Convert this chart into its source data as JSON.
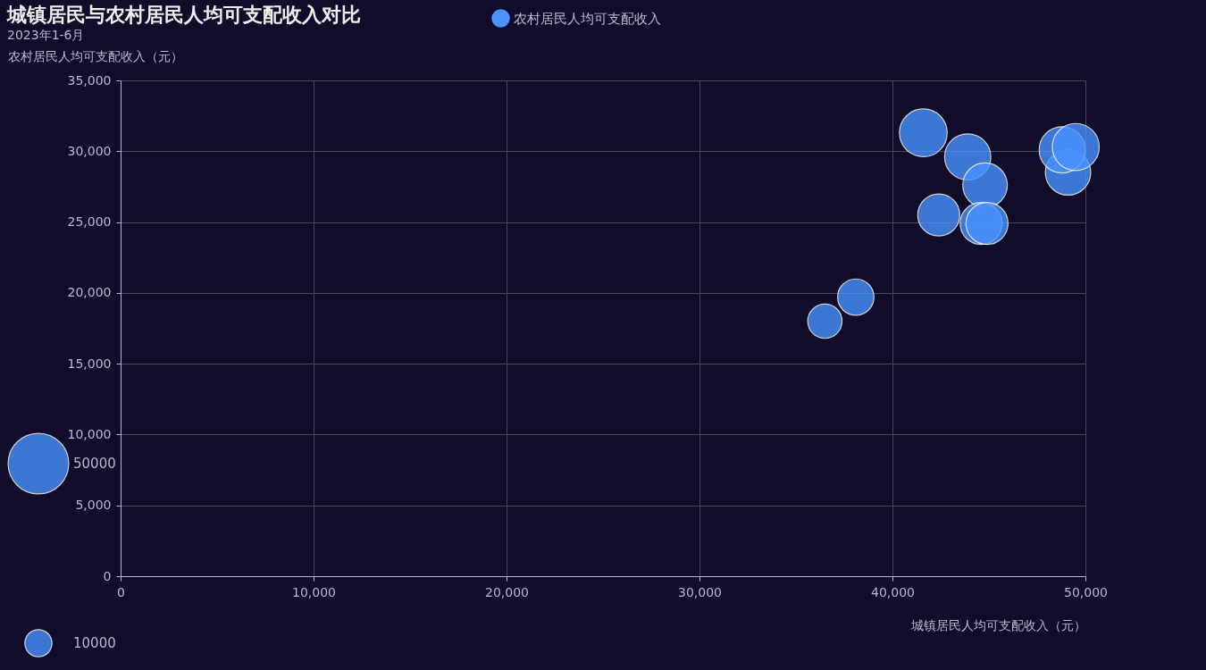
{
  "chart_data": {
    "type": "bubble",
    "title": "城镇居民与农村居民人均可支配收入对比",
    "subtitle": "2023年1-6月",
    "xlabel": "城镇居民人均可支配收入（元）",
    "ylabel": "农村居民人均可支配收入（元）",
    "series": [
      {
        "name": "农村居民人均可支配收入",
        "color": "#4992ff",
        "x": [
          41600,
          43900,
          44800,
          42400,
          44600,
          44900,
          49100,
          48800,
          49500,
          36500,
          38100
        ],
        "values": [
          31300,
          29600,
          27600,
          25500,
          24900,
          24900,
          28500,
          30100,
          30300,
          18000,
          19700
        ],
        "sizes": [
          31000,
          29000,
          27000,
          24000,
          24000,
          24000,
          28000,
          29000,
          30000,
          16000,
          18000
        ]
      }
    ],
    "size_legend": [
      50000,
      10000
    ],
    "xlim": [
      0,
      50000
    ],
    "xticks": [
      0,
      {
        "value": 10000,
        "label": "10,000"
      },
      {
        "value": 20000,
        "label": "20,000"
      },
      {
        "value": 30000,
        "label": "30,000"
      },
      {
        "value": 40000,
        "label": "40,000"
      },
      {
        "value": 50000,
        "label": "50,000"
      }
    ],
    "ylim": [
      0,
      35000
    ],
    "yticks": [
      0,
      {
        "value": 5000,
        "label": "5,000"
      },
      {
        "value": 10000,
        "label": "10,000"
      },
      {
        "value": 15000,
        "label": "15,000"
      },
      {
        "value": 20000,
        "label": "20,000"
      },
      {
        "value": 25000,
        "label": "25,000"
      },
      {
        "value": 30000,
        "label": "30,000"
      },
      {
        "value": 35000,
        "label": "35,000"
      }
    ],
    "grid": true,
    "legend": "top"
  }
}
